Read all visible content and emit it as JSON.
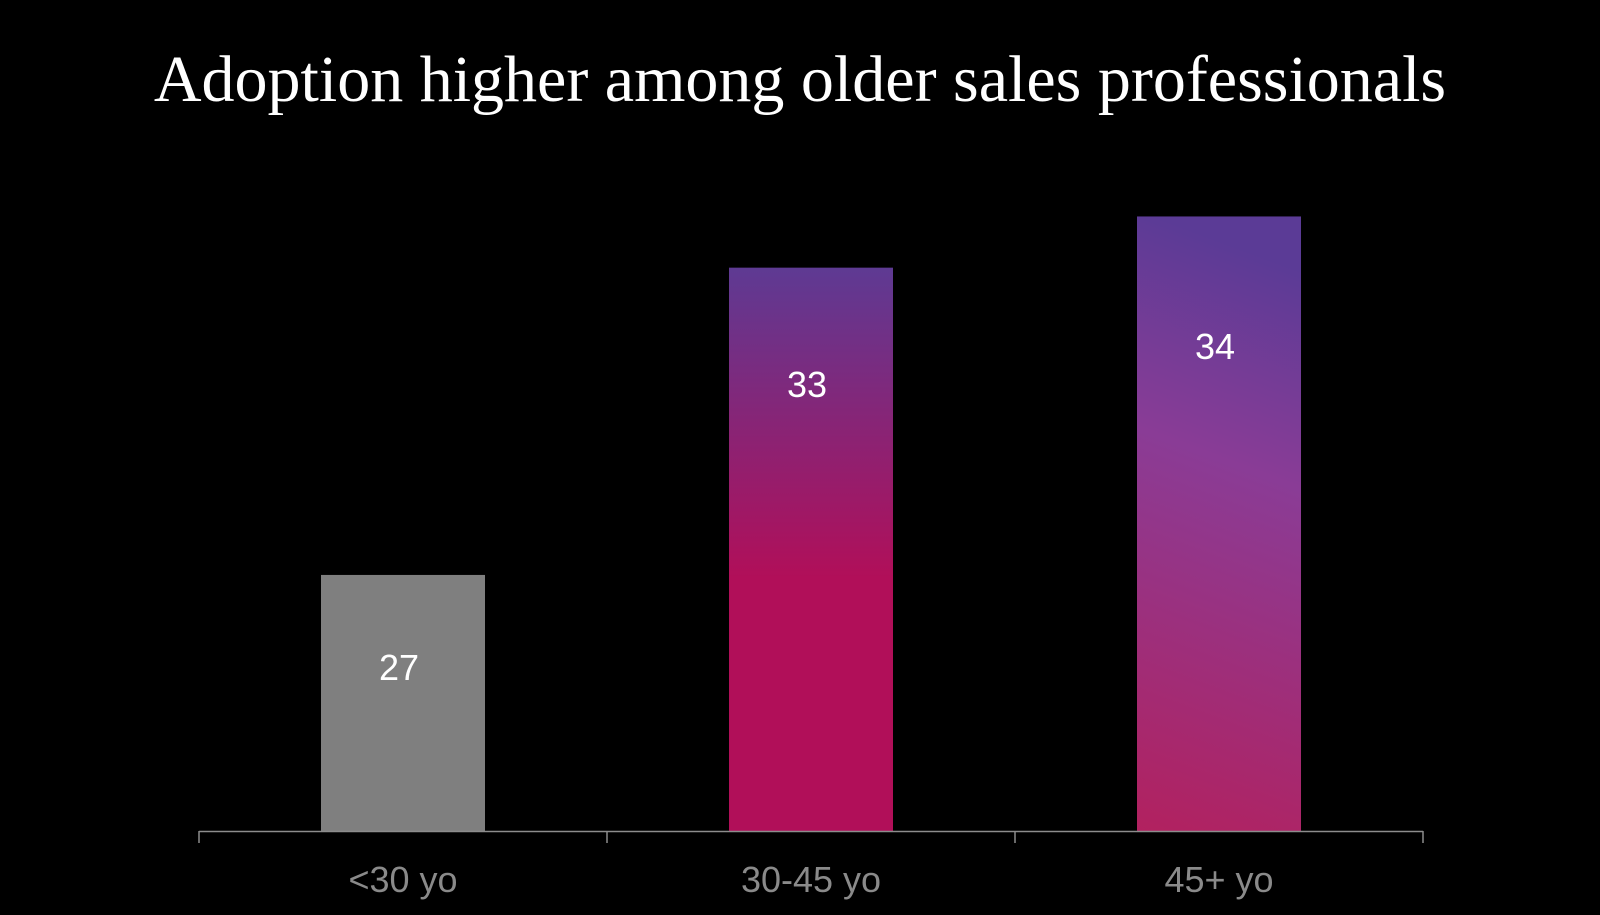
{
  "colors": {
    "background": "#000000",
    "title": "#ffffff",
    "axis": "#8c8c8c",
    "tick_label": "#8a8a8a",
    "value_label": "#ffffff",
    "bar_grey": "#7f7f7f",
    "bar_30_45_top": "#5e3a93",
    "bar_30_45_bottom": "#b10f59",
    "bar_45_top": "#5b3b96",
    "bar_45_bottom": "#b2215f"
  },
  "chart_data": {
    "type": "bar",
    "title": "Adoption higher among older sales professionals",
    "xlabel": "",
    "ylabel": "",
    "categories": [
      "<30 yo",
      "30-45 yo",
      "45+ yo"
    ],
    "values": [
      27,
      33,
      34
    ],
    "value_labels": [
      "27",
      "33",
      "34"
    ],
    "ylim": [
      22,
      35.2
    ],
    "grid": false,
    "legend": "none"
  }
}
